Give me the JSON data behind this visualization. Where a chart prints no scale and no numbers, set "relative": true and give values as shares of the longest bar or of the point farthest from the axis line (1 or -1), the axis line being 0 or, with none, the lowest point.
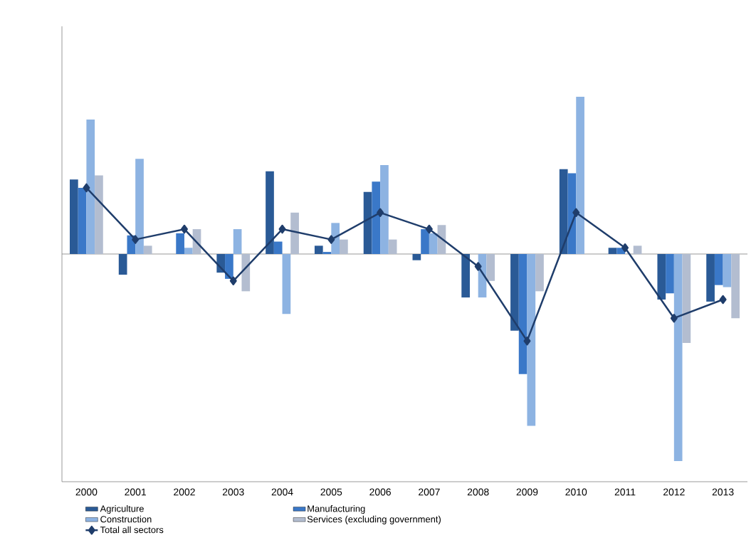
{
  "chart_data": {
    "type": "bar",
    "categories": [
      "2000",
      "2001",
      "2002",
      "2003",
      "2004",
      "2005",
      "2006",
      "2007",
      "2008",
      "2009",
      "2010",
      "2011",
      "2012",
      "2013"
    ],
    "series": [
      {
        "name": "Agriculture",
        "color": "#2a5a96",
        "values": [
          0.36,
          -0.1,
          0,
          -0.09,
          0.4,
          0.04,
          0.3,
          -0.03,
          -0.21,
          -0.37,
          0.41,
          0.03,
          -0.22,
          -0.23
        ]
      },
      {
        "name": "Manufacturing",
        "color": "#3a78c8",
        "values": [
          0.32,
          0.09,
          0.1,
          -0.12,
          0.06,
          0.01,
          0.35,
          0.12,
          0,
          -0.58,
          0.39,
          0.03,
          -0.19,
          -0.15
        ]
      },
      {
        "name": "Construction",
        "color": "#8db3e2",
        "values": [
          0.65,
          0.46,
          0.03,
          0.12,
          -0.29,
          0.15,
          0.43,
          0.1,
          -0.21,
          -0.83,
          0.76,
          0,
          -1,
          -0.16
        ]
      },
      {
        "name": "Services (excluding government)",
        "color": "#b3bdd0",
        "values": [
          0.38,
          0.04,
          0.12,
          -0.18,
          0.2,
          0.07,
          0.07,
          0.14,
          -0.13,
          -0.18,
          0,
          0.04,
          -0.43,
          -0.31
        ]
      },
      {
        "name": "Total all sectors",
        "type": "line",
        "color": "#1f3d6b",
        "marker": "diamond",
        "values": [
          0.32,
          0.07,
          0.12,
          -0.13,
          0.12,
          0.07,
          0.2,
          0.12,
          -0.06,
          -0.42,
          0.2,
          0.03,
          -0.31,
          -0.22
        ]
      }
    ],
    "relative": true,
    "legend": "bottom"
  }
}
